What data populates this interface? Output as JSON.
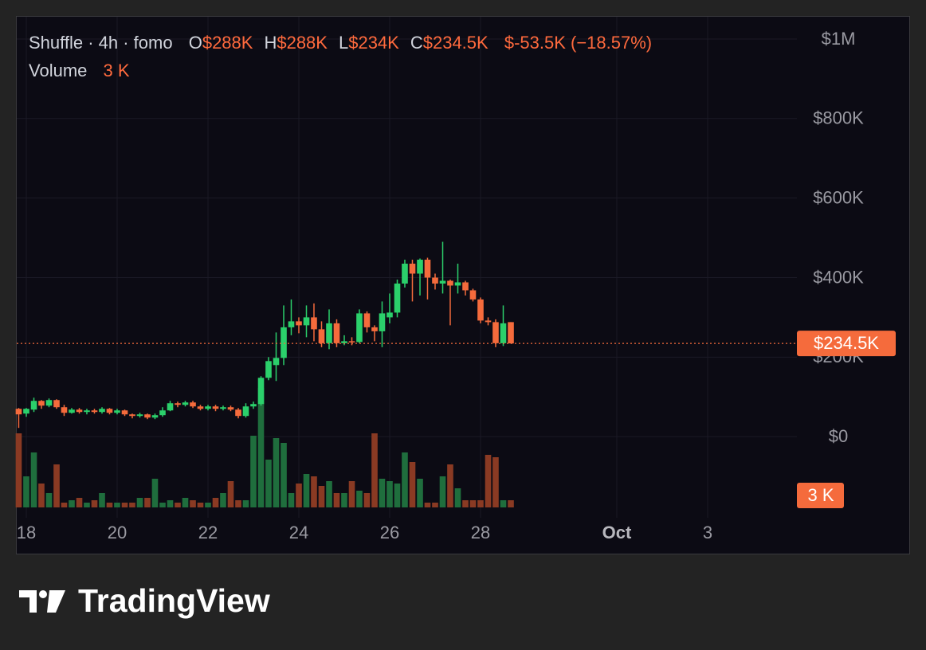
{
  "chart_data": {
    "type": "candlestick",
    "title": "Shuffle · 4h · fomo",
    "ohlc_legend": [
      {
        "key": "O",
        "value": "$288K"
      },
      {
        "key": "H",
        "value": "$288K"
      },
      {
        "key": "L",
        "value": "$234K"
      },
      {
        "key": "C",
        "value": "$234.5K"
      }
    ],
    "change": "$-53.5K (−18.57%)",
    "volume_title": "Volume",
    "volume_label": "3 K",
    "last_price": {
      "value": 234.5,
      "label": "$234.5K"
    },
    "x": [
      17.833,
      18,
      18.167,
      18.333,
      18.5,
      18.667,
      18.833,
      19,
      19.167,
      19.333,
      19.5,
      19.667,
      19.833,
      20,
      20.167,
      20.333,
      20.5,
      20.667,
      20.833,
      21,
      21.167,
      21.333,
      21.5,
      21.667,
      21.833,
      22,
      22.167,
      22.333,
      22.5,
      22.667,
      22.833,
      23,
      23.167,
      23.333,
      23.5,
      23.667,
      23.833,
      24,
      24.167,
      24.333,
      24.5,
      24.667,
      24.833,
      25,
      25.167,
      25.333,
      25.5,
      25.667,
      25.833,
      26,
      26.167,
      26.333,
      26.5,
      26.667,
      26.833,
      27,
      27.167,
      27.333,
      27.5,
      27.667,
      27.833,
      28,
      28.167,
      28.333,
      28.5,
      28.667
    ],
    "open": [
      70,
      58,
      68,
      90,
      78,
      92,
      74,
      60,
      68,
      62,
      66,
      62,
      70,
      60,
      66,
      56,
      52,
      56,
      48,
      54,
      66,
      84,
      80,
      86,
      76,
      70,
      76,
      70,
      74,
      68,
      52,
      76,
      82,
      148,
      180,
      198,
      275,
      290,
      280,
      300,
      270,
      235,
      285,
      235,
      240,
      238,
      310,
      275,
      265,
      300,
      312,
      385,
      435,
      410,
      445,
      400,
      385,
      392,
      380,
      388,
      368,
      345,
      292,
      288,
      235,
      288
    ],
    "high": [
      72,
      72,
      98,
      92,
      96,
      94,
      80,
      72,
      72,
      70,
      70,
      74,
      72,
      70,
      68,
      58,
      60,
      58,
      58,
      74,
      90,
      88,
      90,
      90,
      80,
      80,
      80,
      78,
      78,
      72,
      84,
      88,
      152,
      200,
      262,
      330,
      345,
      300,
      330,
      335,
      290,
      320,
      295,
      255,
      250,
      320,
      315,
      280,
      340,
      360,
      395,
      445,
      445,
      448,
      450,
      410,
      490,
      395,
      435,
      392,
      372,
      350,
      300,
      295,
      330,
      288
    ],
    "low": [
      22,
      50,
      62,
      70,
      74,
      70,
      52,
      58,
      58,
      56,
      58,
      58,
      56,
      56,
      52,
      46,
      48,
      44,
      44,
      50,
      64,
      74,
      76,
      72,
      66,
      66,
      64,
      66,
      64,
      46,
      48,
      70,
      78,
      142,
      140,
      180,
      255,
      260,
      250,
      240,
      225,
      220,
      225,
      230,
      230,
      235,
      262,
      240,
      225,
      285,
      300,
      375,
      340,
      355,
      345,
      370,
      360,
      280,
      360,
      355,
      340,
      285,
      280,
      225,
      228,
      234
    ],
    "close": [
      56,
      70,
      90,
      78,
      92,
      74,
      60,
      68,
      62,
      66,
      62,
      70,
      60,
      66,
      56,
      52,
      56,
      48,
      54,
      66,
      84,
      80,
      86,
      76,
      70,
      76,
      70,
      74,
      68,
      52,
      76,
      82,
      148,
      190,
      198,
      275,
      290,
      280,
      300,
      270,
      235,
      285,
      235,
      240,
      238,
      310,
      275,
      265,
      310,
      312,
      385,
      435,
      410,
      445,
      400,
      385,
      392,
      380,
      388,
      368,
      345,
      292,
      288,
      235,
      285,
      234.5
    ],
    "volume": [
      31,
      13,
      23,
      10,
      6,
      18,
      2,
      3,
      4,
      2,
      3,
      6,
      2,
      2,
      2,
      2,
      4,
      4,
      12,
      2,
      3,
      2,
      4,
      3,
      2,
      2,
      4,
      6,
      11,
      3,
      3,
      30,
      50,
      20,
      29,
      27,
      6,
      10,
      14,
      13,
      9,
      11,
      6,
      6,
      11,
      7,
      6,
      31,
      12,
      11,
      10,
      23,
      19,
      12,
      2,
      2,
      13,
      18,
      8,
      3,
      3,
      3,
      22,
      21,
      3,
      3
    ],
    "up_color": "#2bd06b",
    "down_color": "#f56b3c",
    "volume_up_color": "#1f6e3d",
    "volume_down_color": "#8a3a23",
    "xlim": [
      17.772,
      34.965
    ],
    "xticks": [
      18,
      20,
      22,
      24,
      26,
      28,
      {
        "value": 31,
        "label": "Oct"
      },
      {
        "value": 33,
        "label": "3"
      }
    ],
    "ylim": [
      -204,
      1058
    ],
    "yticks": [
      {
        "value": 0,
        "label": "$0"
      },
      {
        "value": 200,
        "label": "$200K"
      },
      {
        "value": 400,
        "label": "$400K"
      },
      {
        "value": 600,
        "label": "$600K"
      },
      {
        "value": 800,
        "label": "$800K"
      },
      {
        "value": 1000,
        "label": "$1M"
      }
    ],
    "volume_lim": [
      0,
      100
    ],
    "grid": true,
    "brand": "TradingView"
  }
}
